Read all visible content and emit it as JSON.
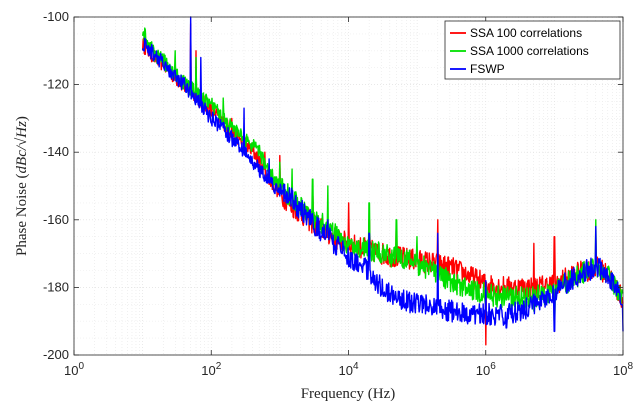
{
  "chart_data": {
    "type": "line",
    "xlabel": "Frequency (Hz)",
    "ylabel_prefix": "Phase Noise (",
    "ylabel_math": "dBc/√Hz",
    "ylabel_suffix": ")",
    "x_scale": "log",
    "xlim": [
      1,
      100000000
    ],
    "ylim": [
      -200,
      -100
    ],
    "x_ticks": [
      {
        "value": 1,
        "base": "10",
        "exp": "0"
      },
      {
        "value": 100,
        "base": "10",
        "exp": "2"
      },
      {
        "value": 10000,
        "base": "10",
        "exp": "4"
      },
      {
        "value": 1000000,
        "base": "10",
        "exp": "6"
      },
      {
        "value": 100000000,
        "base": "10",
        "exp": "8"
      }
    ],
    "y_ticks": [
      -100,
      -120,
      -140,
      -160,
      -180,
      -200
    ],
    "grid": true,
    "minor_grid": true,
    "legend_position": "top-right",
    "series": [
      {
        "name": "SSA 100 correlations",
        "color": "#ff0000",
        "points": [
          [
            10,
            -108
          ],
          [
            12,
            -110
          ],
          [
            15,
            -112
          ],
          [
            20,
            -114
          ],
          [
            30,
            -118
          ],
          [
            50,
            -122
          ],
          [
            70,
            -125
          ],
          [
            100,
            -127
          ],
          [
            150,
            -131
          ],
          [
            200,
            -134
          ],
          [
            300,
            -137
          ],
          [
            500,
            -142
          ],
          [
            700,
            -148
          ],
          [
            1000,
            -152
          ],
          [
            1500,
            -156
          ],
          [
            2000,
            -158
          ],
          [
            3000,
            -161
          ],
          [
            5000,
            -164
          ],
          [
            7000,
            -166
          ],
          [
            10000,
            -167
          ],
          [
            20000,
            -169
          ],
          [
            30000,
            -170
          ],
          [
            50000,
            -171
          ],
          [
            100000,
            -172
          ],
          [
            200000,
            -173
          ],
          [
            300000,
            -174
          ],
          [
            500000,
            -176
          ],
          [
            1000000,
            -179
          ],
          [
            2000000,
            -180
          ],
          [
            5000000,
            -180
          ],
          [
            10000000,
            -179
          ],
          [
            20000000,
            -176
          ],
          [
            30000000,
            -175
          ],
          [
            40000000,
            -174
          ],
          [
            50000000,
            -175
          ],
          [
            70000000,
            -178
          ],
          [
            100000000,
            -184
          ]
        ],
        "spurs": [
          [
            20,
            -114
          ],
          [
            50,
            -102
          ],
          [
            60,
            -110
          ],
          [
            200,
            -130
          ],
          [
            600,
            -140
          ],
          [
            1000,
            -141
          ],
          [
            2000,
            -155
          ],
          [
            3000,
            -153
          ],
          [
            10000,
            -155
          ],
          [
            20000,
            -160
          ],
          [
            50000,
            -163
          ],
          [
            200000,
            -160
          ],
          [
            1000000,
            -197
          ],
          [
            5000000,
            -167
          ],
          [
            10000000,
            -165
          ],
          [
            40000000,
            -165
          ]
        ]
      },
      {
        "name": "SSA 1000 correlations",
        "color": "#00e000",
        "points": [
          [
            10,
            -104
          ],
          [
            12,
            -108
          ],
          [
            15,
            -111
          ],
          [
            20,
            -113
          ],
          [
            30,
            -117
          ],
          [
            50,
            -121
          ],
          [
            70,
            -124
          ],
          [
            100,
            -126
          ],
          [
            150,
            -130
          ],
          [
            200,
            -133
          ],
          [
            300,
            -136
          ],
          [
            500,
            -140
          ],
          [
            700,
            -146
          ],
          [
            1000,
            -150
          ],
          [
            1500,
            -154
          ],
          [
            2000,
            -156
          ],
          [
            3000,
            -159
          ],
          [
            5000,
            -162
          ],
          [
            7000,
            -165
          ],
          [
            10000,
            -167
          ],
          [
            20000,
            -169
          ],
          [
            30000,
            -170
          ],
          [
            50000,
            -171
          ],
          [
            100000,
            -173
          ],
          [
            200000,
            -176
          ],
          [
            300000,
            -178
          ],
          [
            500000,
            -180
          ],
          [
            1000000,
            -182
          ],
          [
            2000000,
            -183
          ],
          [
            5000000,
            -183
          ],
          [
            10000000,
            -181
          ],
          [
            20000000,
            -177
          ],
          [
            30000000,
            -175
          ],
          [
            40000000,
            -174
          ],
          [
            50000000,
            -175
          ],
          [
            70000000,
            -178
          ],
          [
            100000000,
            -184
          ]
        ],
        "spurs": [
          [
            30,
            -110
          ],
          [
            60,
            -112
          ],
          [
            150,
            -124
          ],
          [
            500,
            -138
          ],
          [
            1000,
            -143
          ],
          [
            1500,
            -145
          ],
          [
            3000,
            -148
          ],
          [
            5000,
            -150
          ],
          [
            20000,
            -155
          ],
          [
            50000,
            -160
          ],
          [
            100000,
            -165
          ],
          [
            5000000,
            -187
          ],
          [
            10000000,
            -190
          ],
          [
            40000000,
            -160
          ]
        ]
      },
      {
        "name": "FSWP",
        "color": "#0000ff",
        "points": [
          [
            10,
            -108
          ],
          [
            15,
            -111
          ],
          [
            20,
            -114
          ],
          [
            30,
            -118
          ],
          [
            50,
            -122
          ],
          [
            70,
            -126
          ],
          [
            100,
            -130
          ],
          [
            150,
            -133
          ],
          [
            200,
            -136
          ],
          [
            300,
            -140
          ],
          [
            500,
            -145
          ],
          [
            700,
            -148
          ],
          [
            1000,
            -152
          ],
          [
            1500,
            -154
          ],
          [
            2000,
            -157
          ],
          [
            3000,
            -161
          ],
          [
            5000,
            -165
          ],
          [
            7000,
            -168
          ],
          [
            10000,
            -171
          ],
          [
            15000,
            -173
          ],
          [
            20000,
            -176
          ],
          [
            30000,
            -180
          ],
          [
            50000,
            -183
          ],
          [
            70000,
            -184
          ],
          [
            100000,
            -185
          ],
          [
            200000,
            -186
          ],
          [
            300000,
            -187
          ],
          [
            500000,
            -188
          ],
          [
            1000000,
            -188
          ],
          [
            2000000,
            -188
          ],
          [
            3000000,
            -187
          ],
          [
            5000000,
            -185
          ],
          [
            10000000,
            -181
          ],
          [
            20000000,
            -177
          ],
          [
            30000000,
            -175
          ],
          [
            40000000,
            -174
          ],
          [
            50000000,
            -175
          ],
          [
            70000000,
            -178
          ],
          [
            100000000,
            -184
          ]
        ],
        "spurs": [
          [
            40,
            -118
          ],
          [
            50,
            -100
          ],
          [
            70,
            -112
          ],
          [
            300,
            -127
          ],
          [
            700,
            -142
          ],
          [
            2000,
            -155
          ],
          [
            5000,
            -160
          ],
          [
            20000,
            -164
          ],
          [
            200000,
            -164
          ],
          [
            1000000,
            -178
          ],
          [
            2000000,
            -192
          ],
          [
            5000000,
            -182
          ],
          [
            10000000,
            -193
          ],
          [
            20000000,
            -176
          ],
          [
            40000000,
            -162
          ],
          [
            100000000,
            -193
          ]
        ]
      }
    ]
  }
}
